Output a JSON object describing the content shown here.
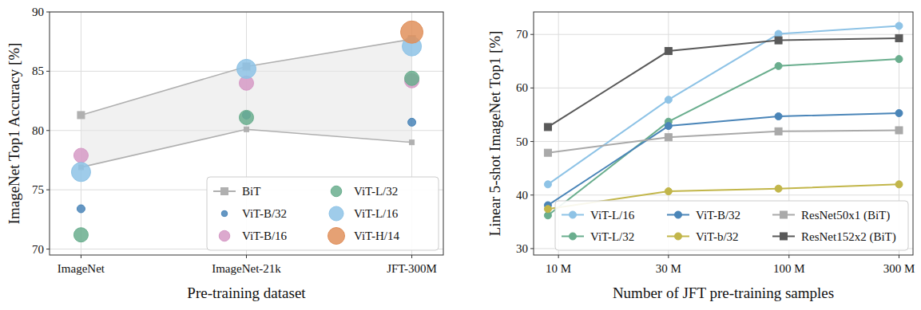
{
  "chart_data": [
    {
      "type": "scatter",
      "x_label": "Pre-training dataset",
      "y_label": "ImageNet Top1 Accuracy [%]",
      "categories": [
        "ImageNet",
        "ImageNet-21k",
        "JFT-300M"
      ],
      "ylim": [
        69.5,
        90
      ],
      "yticks": [
        70,
        75,
        80,
        85,
        90
      ],
      "grid": true,
      "legend": "lower right",
      "series": [
        {
          "name": "BiT",
          "type": "range",
          "color": "#b0b0b0",
          "marker": "square",
          "values": [
            81.3,
            85.4,
            87.7
          ],
          "low": [
            76.9,
            80.1,
            79.0
          ]
        },
        {
          "name": "ViT-B/32",
          "color": "#4a85b8",
          "marker": "circle",
          "values": [
            73.4,
            81.3,
            80.7
          ]
        },
        {
          "name": "ViT-B/16",
          "color": "#d69ac6",
          "marker": "circle",
          "values": [
            77.9,
            84.0,
            84.2
          ]
        },
        {
          "name": "ViT-L/32",
          "color": "#6aae8e",
          "marker": "circle",
          "values": [
            71.2,
            81.1,
            84.4
          ]
        },
        {
          "name": "ViT-L/16",
          "color": "#8ec3e6",
          "marker": "circle",
          "values": [
            76.5,
            85.2,
            87.1
          ]
        },
        {
          "name": "ViT-H/14",
          "color": "#e0905c",
          "marker": "circle",
          "values": [
            null,
            null,
            88.3
          ]
        }
      ]
    },
    {
      "type": "line",
      "x_label": "Number of JFT pre-training samples",
      "y_label": "Linear 5-shot ImageNet Top1 [%]",
      "log": "x",
      "x": [
        9,
        30,
        90,
        300
      ],
      "xlim": [
        7.8,
        345
      ],
      "xticks": [
        {
          "value": 10,
          "label": "10 M"
        },
        {
          "value": 30,
          "label": "30 M"
        },
        {
          "value": 100,
          "label": "100 M"
        },
        {
          "value": 300,
          "label": "300 M"
        }
      ],
      "ylim": [
        28.8,
        74.2
      ],
      "yticks": [
        30,
        40,
        50,
        60,
        70
      ],
      "grid": true,
      "legend": "lower right",
      "series": [
        {
          "name": "ViT-L/16",
          "color": "#8ec3e6",
          "marker": "circle",
          "values": [
            42.0,
            57.8,
            70.1,
            71.6
          ]
        },
        {
          "name": "ViT-L/32",
          "color": "#6aae8e",
          "marker": "circle",
          "values": [
            36.2,
            53.7,
            64.1,
            65.4
          ]
        },
        {
          "name": "ViT-B/32",
          "color": "#4a85b8",
          "marker": "circle",
          "values": [
            38.1,
            52.9,
            54.7,
            55.3
          ]
        },
        {
          "name": "ViT-b/32",
          "color": "#c2b64a",
          "marker": "circle",
          "values": [
            37.4,
            40.7,
            41.2,
            42.0
          ]
        },
        {
          "name": "ResNet50x1 (BiT)",
          "color": "#a9a9a9",
          "marker": "square",
          "values": [
            47.9,
            50.8,
            51.9,
            52.1
          ]
        },
        {
          "name": "ResNet152x2 (BiT)",
          "color": "#595959",
          "marker": "square",
          "values": [
            52.7,
            66.9,
            68.9,
            69.3
          ]
        }
      ]
    }
  ]
}
